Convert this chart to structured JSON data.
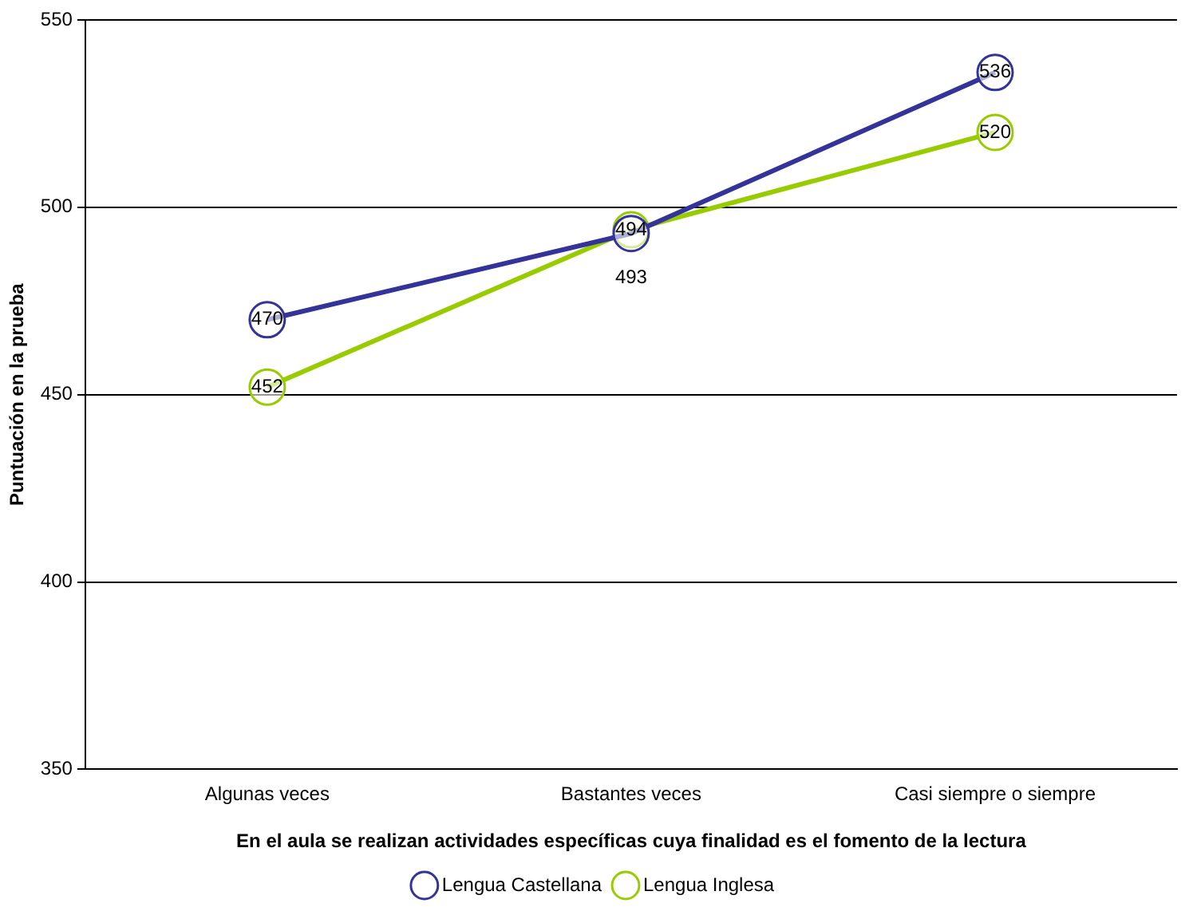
{
  "chart_data": {
    "type": "line",
    "xlabel": "En el aula se realizan actividades específicas cuya finalidad es el fomento de la lectura",
    "ylabel": "Puntuación en la prueba",
    "categories": [
      "Algunas veces",
      "Bastantes veces",
      "Casi siempre o siempre"
    ],
    "series": [
      {
        "name": "Lengua Castellana",
        "color": "#333399",
        "values": [
          470,
          493,
          536
        ]
      },
      {
        "name": "Lengua Inglesa",
        "color": "#99cc00",
        "values": [
          452,
          494,
          520
        ]
      }
    ],
    "ylim": [
      350,
      550
    ],
    "yticks": [
      350,
      400,
      450,
      500,
      550
    ],
    "grid": "y",
    "legend": "bottom",
    "marker": "circle",
    "line_style": "solid",
    "data_labels": true
  }
}
